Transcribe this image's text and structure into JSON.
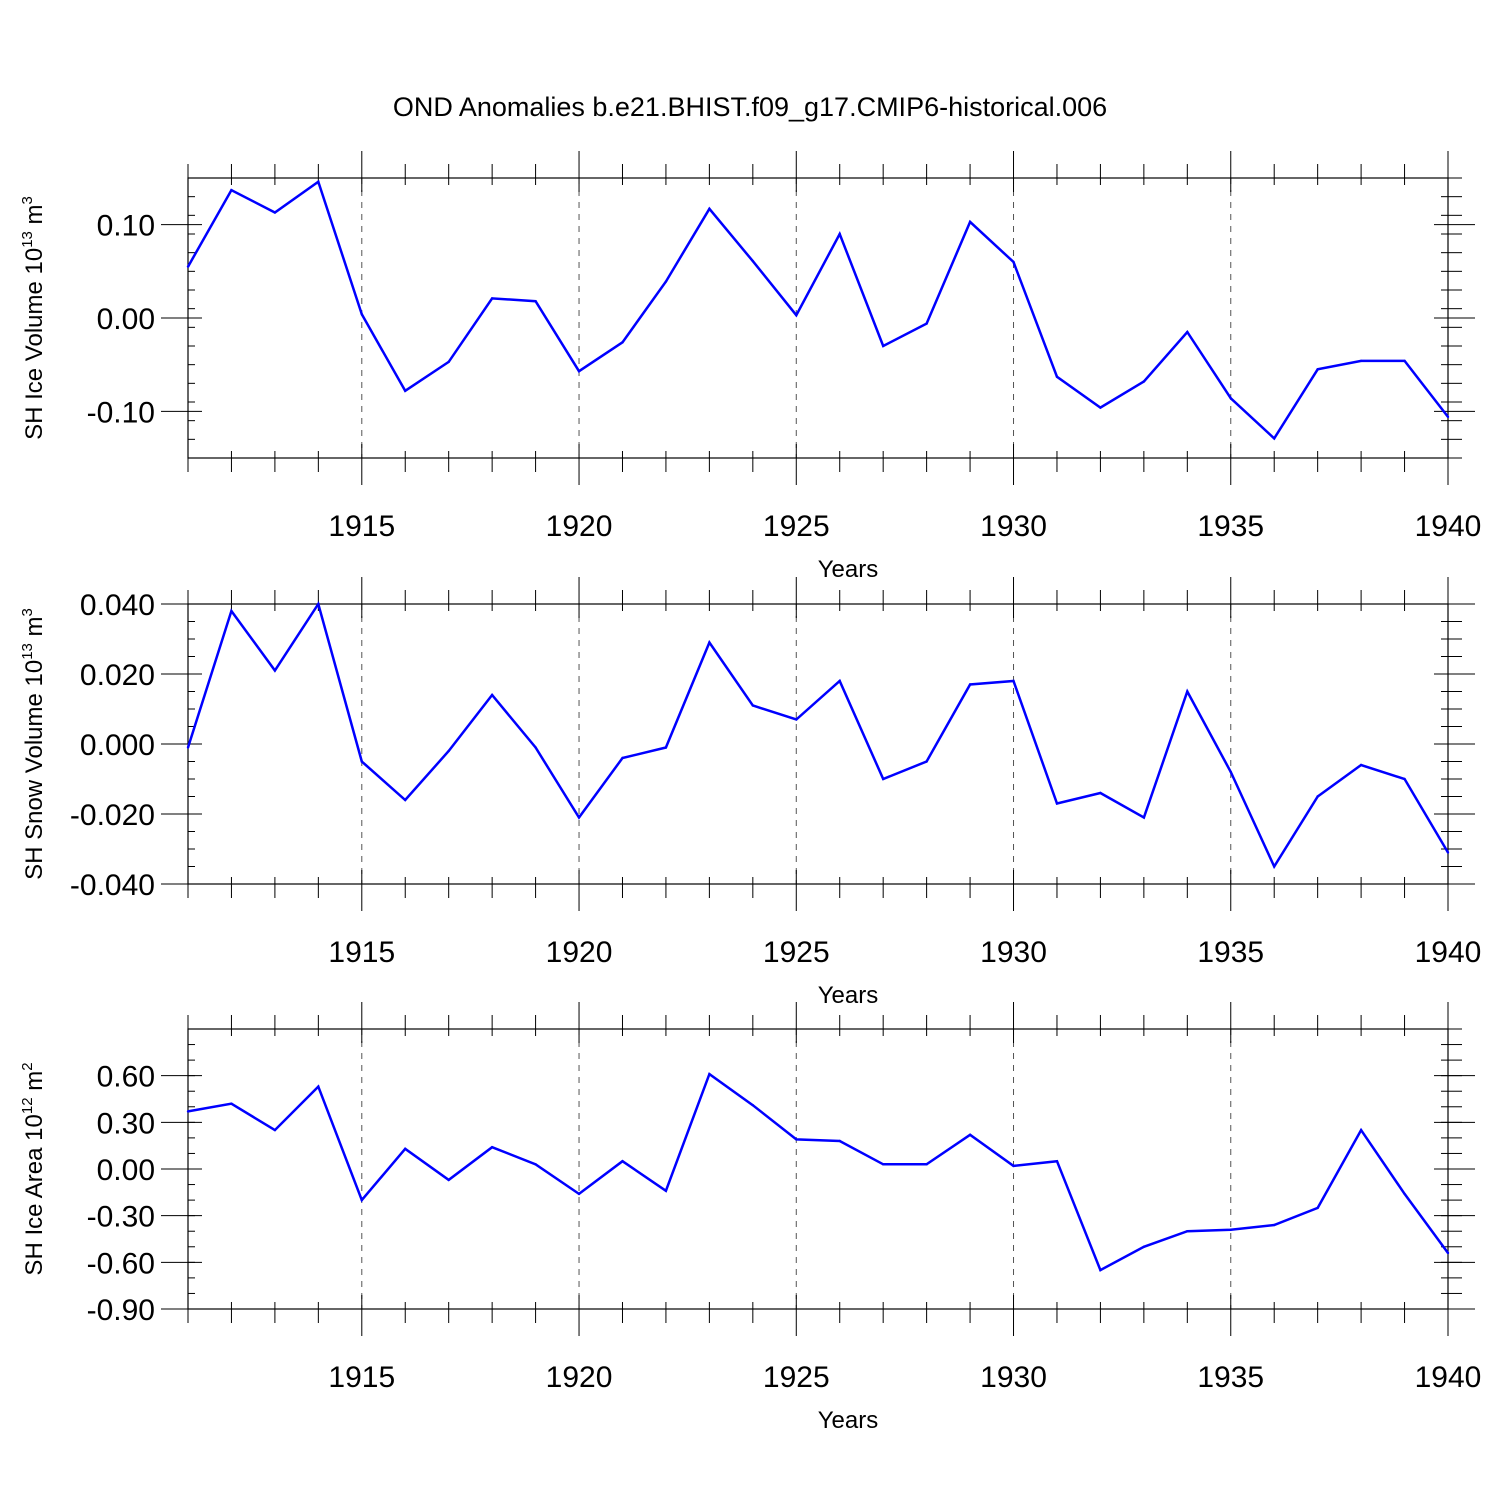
{
  "title": "OND Anomalies b.e21.BHIST.f09_g17.CMIP6-historical.006",
  "colors": {
    "line": "#0000ff",
    "axis": "#000000",
    "grid": "#555555"
  },
  "chart_data": [
    {
      "type": "line",
      "ylabel_main": "SH Ice Volume 10",
      "ylabel_exp": "13",
      "ylabel_unit": " m",
      "ylabel_unit_exp": "3",
      "xlabel": "Years",
      "xlim": [
        1911,
        1940
      ],
      "ylim": [
        -0.15,
        0.15
      ],
      "yticks": [
        -0.1,
        0.0,
        0.1
      ],
      "ytick_labels": [
        "-0.10",
        "0.00",
        "0.10"
      ],
      "yminor_step": 0.02,
      "xticks": [
        1915,
        1920,
        1925,
        1930,
        1935,
        1940
      ],
      "xtick_labels": [
        "1915",
        "1920",
        "1925",
        "1930",
        "1935",
        "1940"
      ],
      "x": [
        1911,
        1912,
        1913,
        1914,
        1915,
        1916,
        1917,
        1918,
        1919,
        1920,
        1921,
        1922,
        1923,
        1924,
        1925,
        1926,
        1927,
        1928,
        1929,
        1930,
        1931,
        1932,
        1933,
        1934,
        1935,
        1936,
        1937,
        1938,
        1939,
        1940
      ],
      "values": [
        0.055,
        0.137,
        0.113,
        0.146,
        0.004,
        -0.078,
        -0.047,
        0.021,
        0.018,
        -0.057,
        -0.026,
        0.039,
        0.117,
        0.061,
        0.003,
        0.09,
        -0.03,
        -0.006,
        0.103,
        0.06,
        -0.063,
        -0.096,
        -0.068,
        -0.015,
        -0.086,
        -0.129,
        -0.055,
        -0.046,
        -0.046,
        -0.106
      ]
    },
    {
      "type": "line",
      "ylabel_main": "SH Snow Volume 10",
      "ylabel_exp": "13",
      "ylabel_unit": " m",
      "ylabel_unit_exp": "3",
      "xlabel": "Years",
      "xlim": [
        1911,
        1940
      ],
      "ylim": [
        -0.04,
        0.04
      ],
      "yticks": [
        -0.04,
        -0.02,
        0.0,
        0.02,
        0.04
      ],
      "ytick_labels": [
        "-0.040",
        "-0.020",
        "0.000",
        "0.020",
        "0.040"
      ],
      "yminor_step": 0.005,
      "xticks": [
        1915,
        1920,
        1925,
        1930,
        1935,
        1940
      ],
      "xtick_labels": [
        "1915",
        "1920",
        "1925",
        "1930",
        "1935",
        "1940"
      ],
      "x": [
        1911,
        1912,
        1913,
        1914,
        1915,
        1916,
        1917,
        1918,
        1919,
        1920,
        1921,
        1922,
        1923,
        1924,
        1925,
        1926,
        1927,
        1928,
        1929,
        1930,
        1931,
        1932,
        1933,
        1934,
        1935,
        1936,
        1937,
        1938,
        1939,
        1940
      ],
      "values": [
        -0.001,
        0.038,
        0.021,
        0.04,
        -0.005,
        -0.016,
        -0.002,
        0.014,
        -0.001,
        -0.021,
        -0.004,
        -0.001,
        0.029,
        0.011,
        0.007,
        0.018,
        -0.01,
        -0.005,
        0.017,
        0.018,
        -0.017,
        -0.014,
        -0.021,
        0.015,
        -0.008,
        -0.035,
        -0.015,
        -0.006,
        -0.01,
        -0.031
      ]
    },
    {
      "type": "line",
      "ylabel_main": "SH Ice Area 10",
      "ylabel_exp": "12",
      "ylabel_unit": " m",
      "ylabel_unit_exp": "2",
      "xlabel": "Years",
      "xlim": [
        1911,
        1940
      ],
      "ylim": [
        -0.9,
        0.9
      ],
      "yticks": [
        -0.9,
        -0.6,
        -0.3,
        0.0,
        0.3,
        0.6
      ],
      "ytick_labels": [
        "-0.90",
        "-0.60",
        "-0.30",
        "0.00",
        "0.30",
        "0.60"
      ],
      "yminor_step": 0.1,
      "xticks": [
        1915,
        1920,
        1925,
        1930,
        1935,
        1940
      ],
      "xtick_labels": [
        "1915",
        "1920",
        "1925",
        "1930",
        "1935",
        "1940"
      ],
      "x": [
        1911,
        1912,
        1913,
        1914,
        1915,
        1916,
        1917,
        1918,
        1919,
        1920,
        1921,
        1922,
        1923,
        1924,
        1925,
        1926,
        1927,
        1928,
        1929,
        1930,
        1931,
        1932,
        1933,
        1934,
        1935,
        1936,
        1937,
        1938,
        1939,
        1940
      ],
      "values": [
        0.37,
        0.42,
        0.25,
        0.53,
        -0.2,
        0.13,
        -0.07,
        0.14,
        0.03,
        -0.16,
        0.05,
        -0.14,
        0.61,
        0.41,
        0.19,
        0.18,
        0.03,
        0.03,
        0.22,
        0.02,
        0.05,
        -0.65,
        -0.5,
        -0.4,
        -0.39,
        -0.36,
        -0.25,
        0.25,
        -0.16,
        -0.54
      ]
    }
  ]
}
